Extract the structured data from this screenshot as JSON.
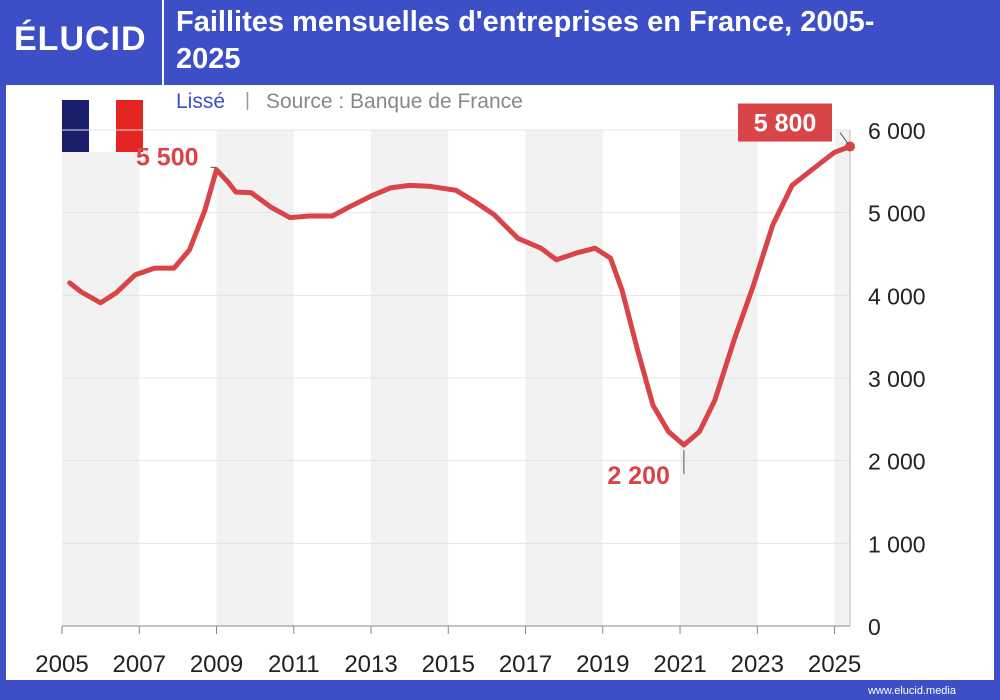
{
  "brand": "ÉLUCID",
  "footer": "www.elucid.media",
  "chart_data": {
    "type": "line",
    "title": "Faillites mensuelles d'entreprises en France, 2005-2025",
    "smoothing": "Lissé",
    "source": "Source : Banque de France",
    "color": "#d94448",
    "grid": true,
    "x": [
      2005.2,
      2005.5,
      2006.0,
      2006.4,
      2006.9,
      2007.4,
      2007.9,
      2008.3,
      2008.7,
      2009.0,
      2009.3,
      2009.5,
      2009.9,
      2010.4,
      2010.9,
      2011.4,
      2012.0,
      2012.4,
      2013.0,
      2013.5,
      2014.0,
      2014.5,
      2015.2,
      2015.7,
      2016.2,
      2016.8,
      2017.4,
      2017.8,
      2018.3,
      2018.8,
      2019.2,
      2019.5,
      2019.9,
      2020.3,
      2020.7,
      2021.1,
      2021.5,
      2021.9,
      2022.4,
      2022.9,
      2023.4,
      2023.9,
      2024.5,
      2025.0,
      2025.4
    ],
    "values": [
      4150,
      4040,
      3910,
      4030,
      4250,
      4330,
      4330,
      4550,
      5030,
      5520,
      5370,
      5250,
      5240,
      5070,
      4940,
      4960,
      4960,
      5060,
      5200,
      5300,
      5330,
      5320,
      5270,
      5130,
      4970,
      4690,
      4570,
      4430,
      4510,
      4570,
      4450,
      4060,
      3340,
      2670,
      2350,
      2190,
      2350,
      2730,
      3460,
      4120,
      4850,
      5330,
      5550,
      5730,
      5800
    ],
    "xlim": [
      2005,
      2025.4
    ],
    "xticks": [
      2005,
      2007,
      2009,
      2011,
      2013,
      2015,
      2017,
      2019,
      2021,
      2023,
      2025
    ],
    "ylim": [
      0,
      6000
    ],
    "yticks": [
      0,
      {
        "value": 1000,
        "label": "1 000"
      },
      {
        "value": 2000,
        "label": "2 000"
      },
      {
        "value": 3000,
        "label": "3 000"
      },
      {
        "value": 4000,
        "label": "4 000"
      },
      {
        "value": 5000,
        "label": "5 000"
      },
      {
        "value": 6000,
        "label": "6 000"
      }
    ],
    "annotations": [
      {
        "label": "5 500",
        "x": 2009.0,
        "y": 5500
      },
      {
        "label": "2 200",
        "x": 2021.1,
        "y": 2200
      },
      {
        "label": "5 800",
        "x": 2025.4,
        "y": 5800
      }
    ]
  }
}
